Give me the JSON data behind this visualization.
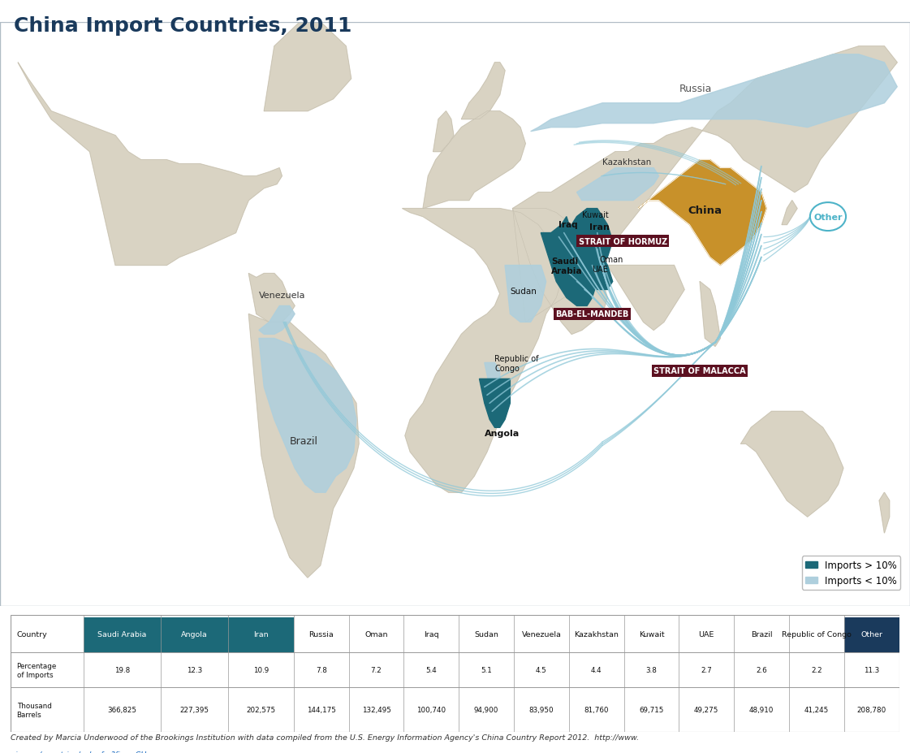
{
  "title": "China Import Countries, 2011",
  "title_color": "#1a3a5c",
  "title_fontsize": 18,
  "bg_color": "#ffffff",
  "map_bg": "#d9d3c3",
  "map_border": "#c5bfaf",
  "water_color": "#dce8ef",
  "high_import_color": "#1c6978",
  "low_import_color": "#aecfdd",
  "china_color": "#c8912a",
  "legend_high": "Imports > 10%",
  "legend_low": "Imports < 10%",
  "strait_color": "#5c1020",
  "other_bubble_color": "#4db3c8",
  "flow_line_color": "#8ec8d8",
  "flow_line_alpha": 0.75,
  "table_countries": [
    "Country",
    "Saudi Arabia",
    "Angola",
    "Iran",
    "Russia",
    "Oman",
    "Iraq",
    "Sudan",
    "Venezuela",
    "Kazakhstan",
    "Kuwait",
    "UAE",
    "Brazil",
    "Republic of Congo",
    "Other"
  ],
  "table_pct": [
    "Percentage\nof Imports",
    "19.8",
    "12.3",
    "10.9",
    "7.8",
    "7.2",
    "5.4",
    "5.1",
    "4.5",
    "4.4",
    "3.8",
    "2.7",
    "2.6",
    "2.2",
    "11.3"
  ],
  "table_barrels": [
    "Thousand\nBarrels",
    "366,825",
    "227,395",
    "202,575",
    "144,175",
    "132,495",
    "100,740",
    "94,900",
    "83,950",
    "81,760",
    "69,715",
    "49,275",
    "48,910",
    "41,245",
    "208,780"
  ],
  "header_high_color": "#1c6978",
  "header_other_color": "#1a3a5c"
}
